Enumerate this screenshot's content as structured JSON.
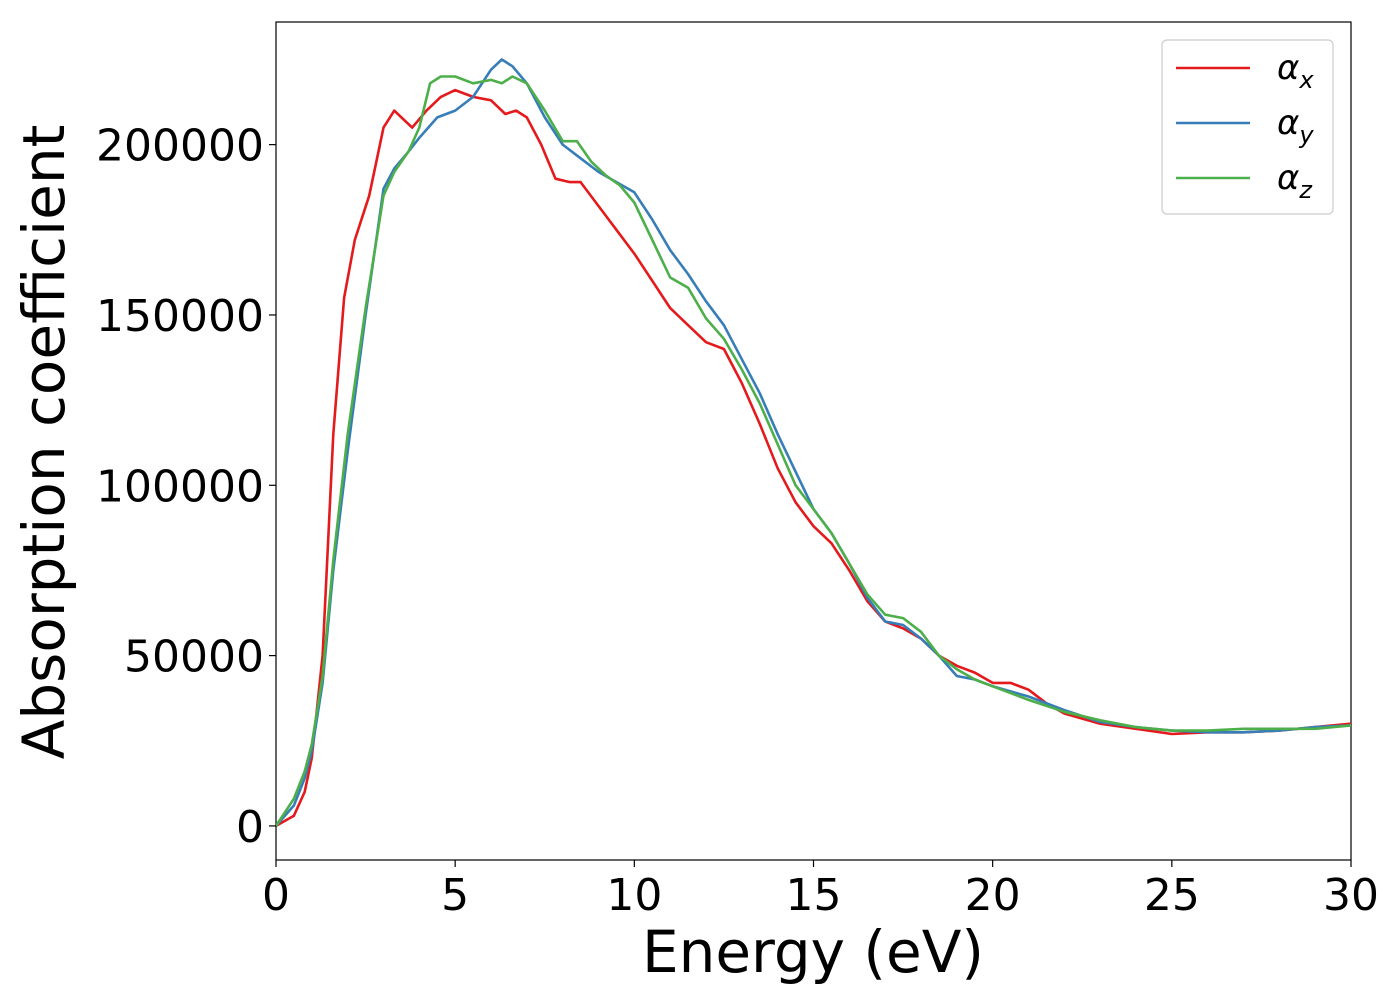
{
  "chart_data": {
    "type": "line",
    "xlabel": "Energy (eV)",
    "ylabel": "Absorption coefficient",
    "xlim": [
      0,
      30
    ],
    "ylim": [
      -10000,
      236000
    ],
    "xticks": [
      0,
      5,
      10,
      15,
      20,
      25,
      30
    ],
    "yticks": [
      0,
      50000,
      100000,
      150000,
      200000
    ],
    "grid": false,
    "legend_position": "top-right",
    "series": [
      {
        "name": "α",
        "subscript": "x",
        "color": "#e41a1c",
        "x": [
          0,
          0.5,
          0.8,
          1.0,
          1.3,
          1.6,
          1.9,
          2.2,
          2.6,
          3.0,
          3.3,
          3.5,
          3.8,
          4.2,
          4.6,
          5.0,
          5.5,
          6.0,
          6.4,
          6.7,
          7.0,
          7.4,
          7.8,
          8.2,
          8.5,
          9.0,
          9.5,
          10.0,
          10.5,
          11.0,
          11.5,
          12.0,
          12.5,
          13.0,
          13.5,
          14.0,
          14.5,
          15.0,
          15.5,
          16.0,
          16.5,
          17.0,
          17.5,
          18.0,
          18.5,
          19.0,
          19.5,
          20.0,
          20.5,
          21.0,
          21.5,
          22.0,
          23.0,
          24.0,
          25.0,
          26.0,
          27.0,
          28.0,
          29.0,
          30.0
        ],
        "y": [
          0,
          3000,
          10000,
          20000,
          50000,
          115000,
          155000,
          172000,
          185000,
          205000,
          210000,
          208000,
          205000,
          210000,
          214000,
          216000,
          214000,
          213000,
          209000,
          210000,
          208000,
          200000,
          190000,
          189000,
          189000,
          182000,
          175000,
          168000,
          160000,
          152000,
          147000,
          142000,
          140000,
          130000,
          118000,
          105000,
          95000,
          88000,
          83000,
          75000,
          66000,
          60000,
          58000,
          55000,
          50000,
          47000,
          45000,
          42000,
          42000,
          40000,
          36000,
          33000,
          30000,
          28500,
          27000,
          27500,
          27500,
          28000,
          29000,
          30000
        ]
      },
      {
        "name": "α",
        "subscript": "y",
        "color": "#377eb8",
        "x": [
          0,
          0.5,
          0.8,
          1.0,
          1.3,
          1.6,
          2.0,
          2.5,
          3.0,
          3.3,
          3.7,
          4.0,
          4.5,
          5.0,
          5.5,
          6.0,
          6.3,
          6.6,
          7.0,
          7.5,
          8.0,
          8.5,
          9.0,
          9.5,
          10.0,
          10.5,
          11.0,
          11.5,
          12.0,
          12.5,
          13.0,
          13.5,
          14.0,
          14.5,
          15.0,
          15.5,
          16.0,
          16.5,
          17.0,
          17.5,
          18.0,
          18.5,
          19.0,
          19.5,
          20.0,
          21.0,
          22.0,
          23.0,
          24.0,
          25.0,
          26.0,
          27.0,
          28.0,
          29.0,
          30.0
        ],
        "y": [
          0,
          6000,
          14000,
          22000,
          42000,
          75000,
          110000,
          150000,
          187000,
          193000,
          198000,
          202000,
          208000,
          210000,
          214000,
          222000,
          225000,
          223000,
          218000,
          208000,
          200000,
          196000,
          192000,
          189000,
          186000,
          178000,
          169000,
          162000,
          154000,
          147000,
          137000,
          127000,
          115000,
          104000,
          93000,
          86000,
          77000,
          67000,
          60000,
          59000,
          55000,
          50000,
          44000,
          43000,
          41000,
          38000,
          34000,
          30500,
          29000,
          28000,
          27500,
          27500,
          28000,
          29000,
          29500
        ]
      },
      {
        "name": "α",
        "subscript": "z",
        "color": "#4daf4a",
        "x": [
          0,
          0.5,
          0.8,
          1.0,
          1.3,
          1.6,
          2.0,
          2.5,
          3.0,
          3.3,
          3.7,
          4.0,
          4.3,
          4.6,
          5.0,
          5.5,
          6.0,
          6.3,
          6.6,
          7.0,
          7.5,
          8.0,
          8.4,
          8.8,
          9.2,
          9.6,
          10.0,
          10.5,
          11.0,
          11.5,
          12.0,
          12.5,
          13.0,
          13.5,
          14.0,
          14.5,
          15.0,
          15.5,
          16.0,
          16.5,
          17.0,
          17.5,
          18.0,
          18.5,
          19.0,
          19.5,
          20.0,
          21.0,
          22.0,
          23.0,
          24.0,
          25.0,
          26.0,
          27.0,
          28.0,
          29.0,
          30.0
        ],
        "y": [
          0,
          8000,
          16000,
          24000,
          44000,
          78000,
          115000,
          152000,
          185000,
          192000,
          198000,
          205000,
          218000,
          220000,
          220000,
          218000,
          219000,
          218000,
          220000,
          218000,
          210000,
          201000,
          201000,
          195000,
          191000,
          188000,
          183000,
          172000,
          161000,
          158000,
          149000,
          143000,
          134000,
          124000,
          112000,
          100000,
          93000,
          86000,
          77000,
          68000,
          62000,
          61000,
          57000,
          50000,
          46000,
          43000,
          41000,
          37000,
          33500,
          31000,
          29000,
          28000,
          28000,
          28500,
          28500,
          28500,
          29500
        ]
      }
    ]
  }
}
